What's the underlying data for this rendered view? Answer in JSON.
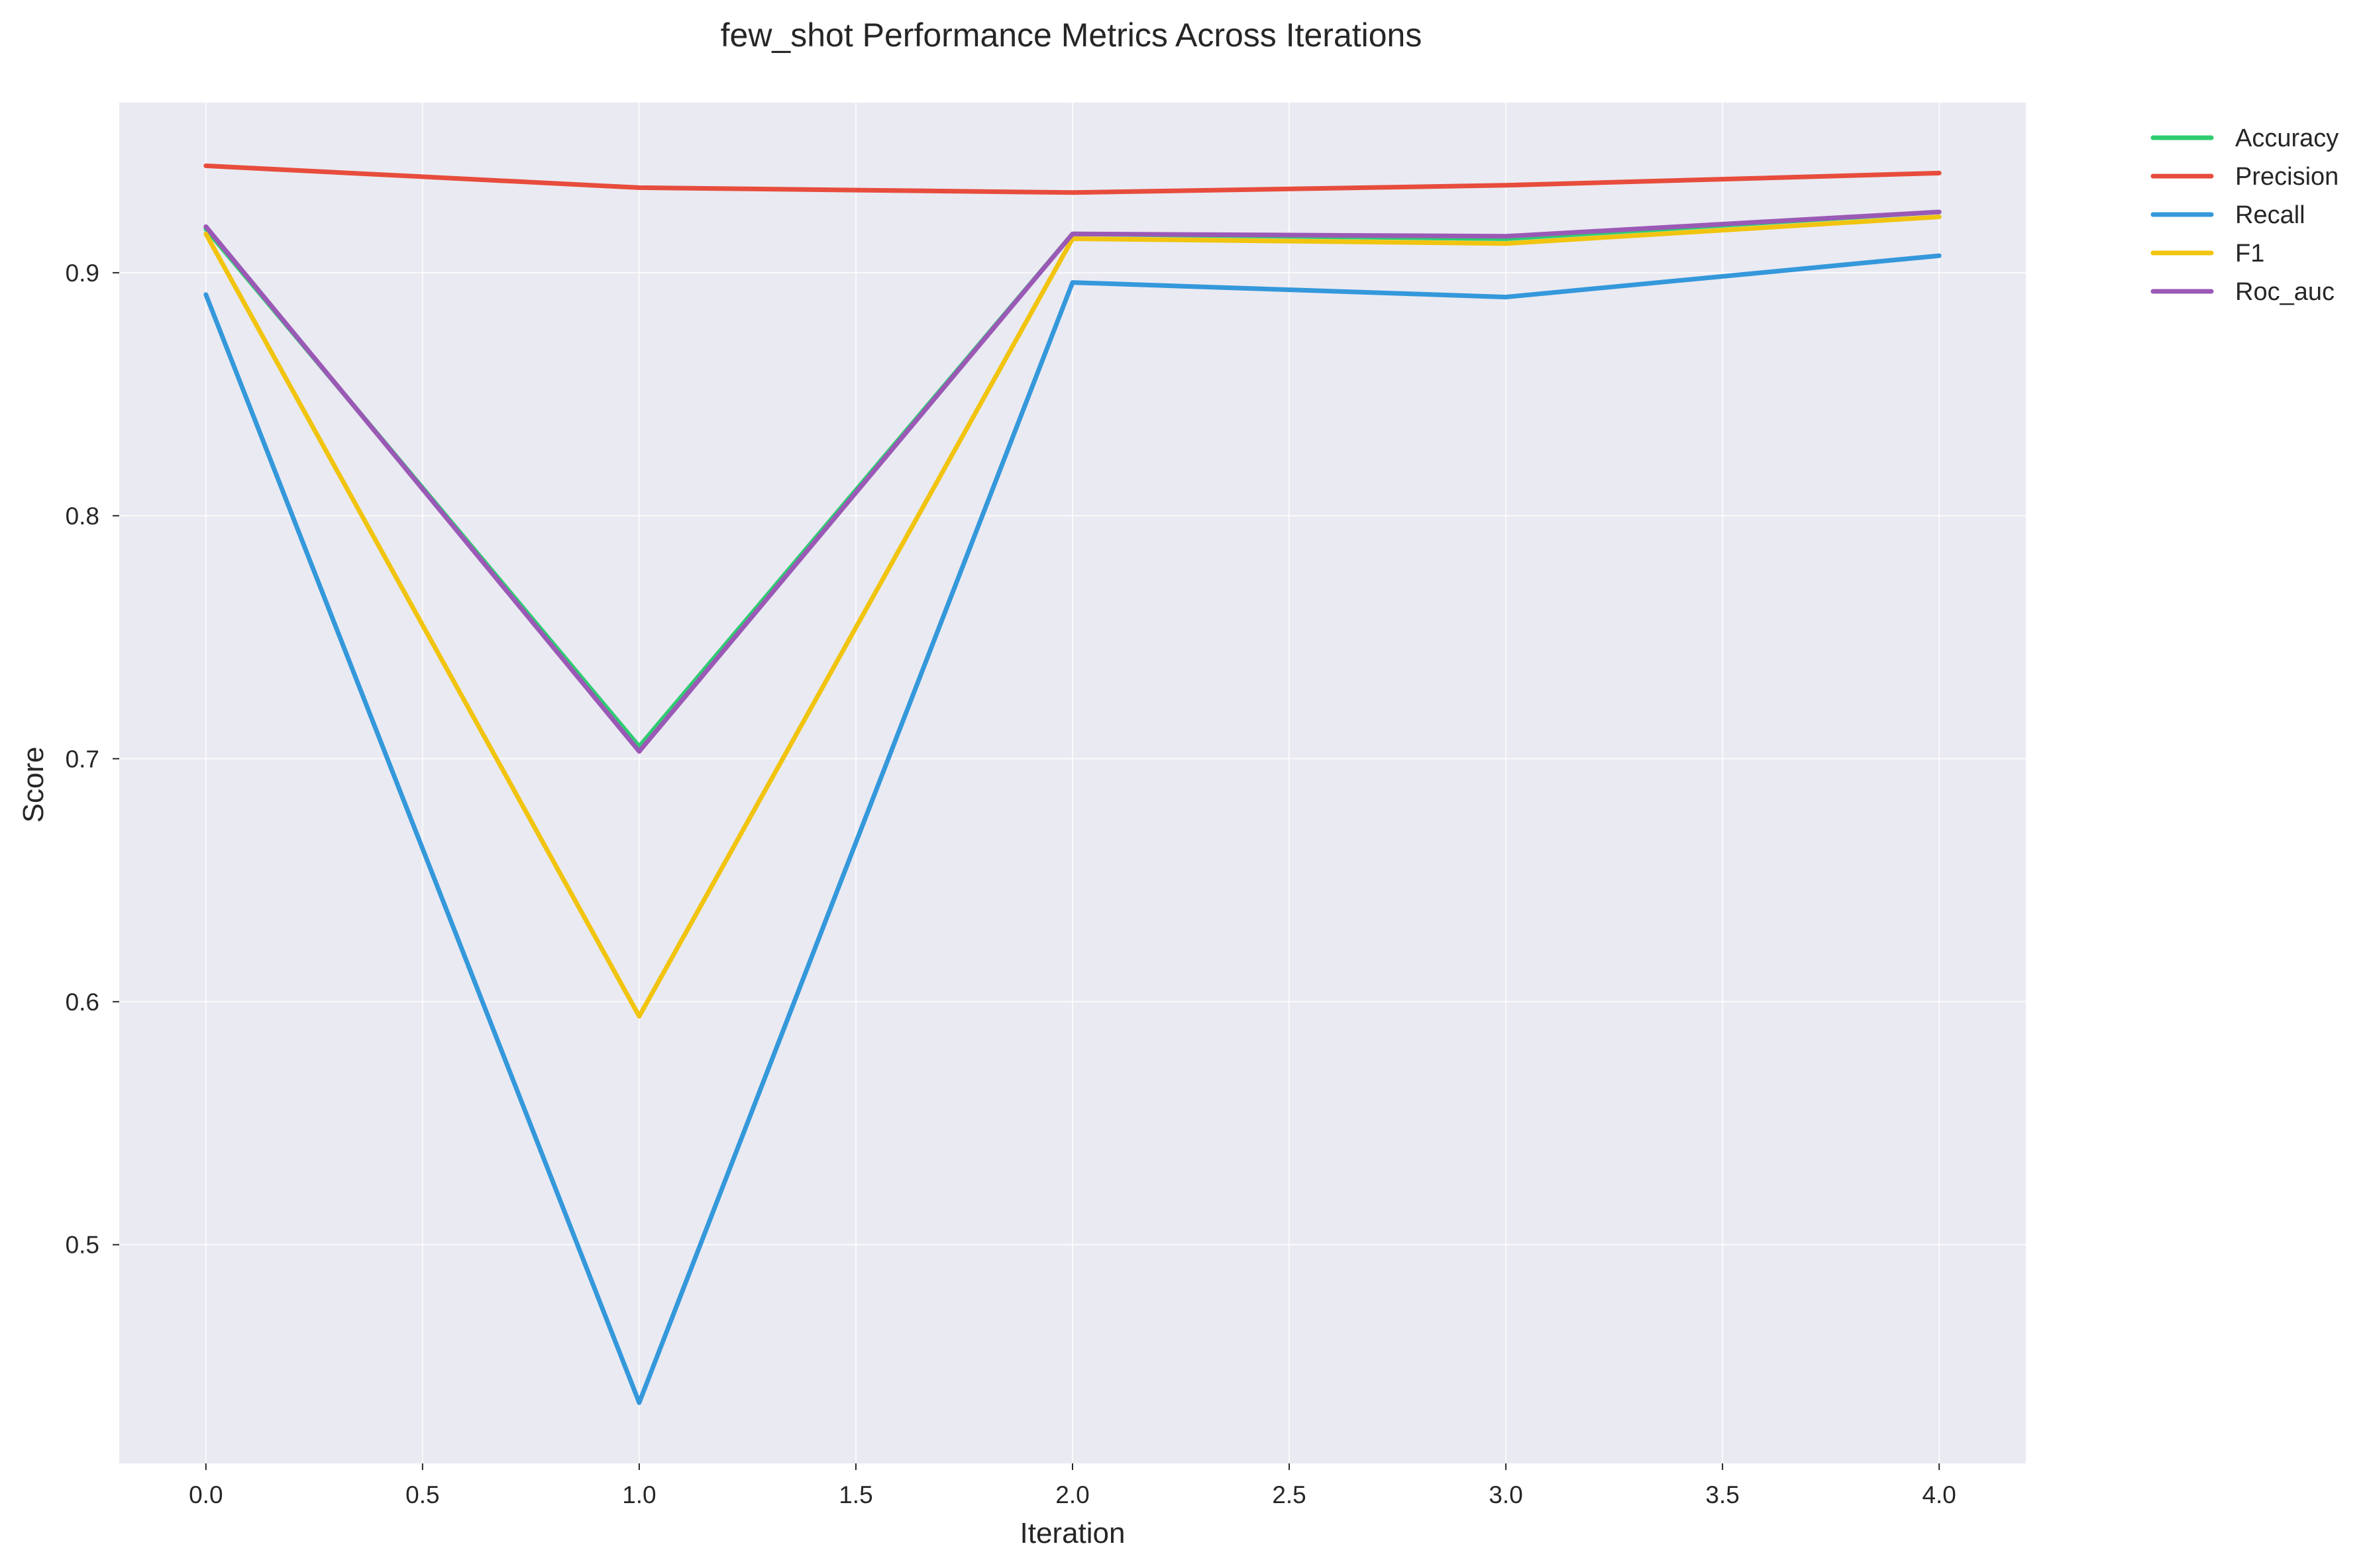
{
  "chart_data": {
    "type": "line",
    "title": "few_shot Performance Metrics Across Iterations",
    "xlabel": "Iteration",
    "ylabel": "Score",
    "x": [
      0,
      1,
      2,
      3,
      4
    ],
    "xlim": [
      -0.2,
      4.2
    ],
    "ylim": [
      0.41,
      0.97
    ],
    "xticks": [
      0.0,
      0.5,
      1.0,
      1.5,
      2.0,
      2.5,
      3.0,
      3.5,
      4.0
    ],
    "xtick_labels": [
      "0.0",
      "0.5",
      "1.0",
      "1.5",
      "2.0",
      "2.5",
      "3.0",
      "3.5",
      "4.0"
    ],
    "yticks": [
      0.5,
      0.6,
      0.7,
      0.8,
      0.9
    ],
    "ytick_labels": [
      "0.5",
      "0.6",
      "0.7",
      "0.8",
      "0.9"
    ],
    "grid": true,
    "legend_position": "outside-top-right",
    "plot_background": "#eaeaf2",
    "series": [
      {
        "name": "Accuracy",
        "color": "#2ecc71",
        "values": [
          0.918,
          0.705,
          0.916,
          0.914,
          0.925
        ]
      },
      {
        "name": "Precision",
        "color": "#e74c3c",
        "values": [
          0.944,
          0.935,
          0.933,
          0.936,
          0.941
        ]
      },
      {
        "name": "Recall",
        "color": "#3498db",
        "values": [
          0.891,
          0.435,
          0.896,
          0.89,
          0.907
        ]
      },
      {
        "name": "F1",
        "color": "#f1c40f",
        "values": [
          0.916,
          0.594,
          0.914,
          0.912,
          0.923
        ]
      },
      {
        "name": "Roc_auc",
        "color": "#9b59b6",
        "values": [
          0.919,
          0.703,
          0.916,
          0.915,
          0.925
        ]
      }
    ]
  }
}
